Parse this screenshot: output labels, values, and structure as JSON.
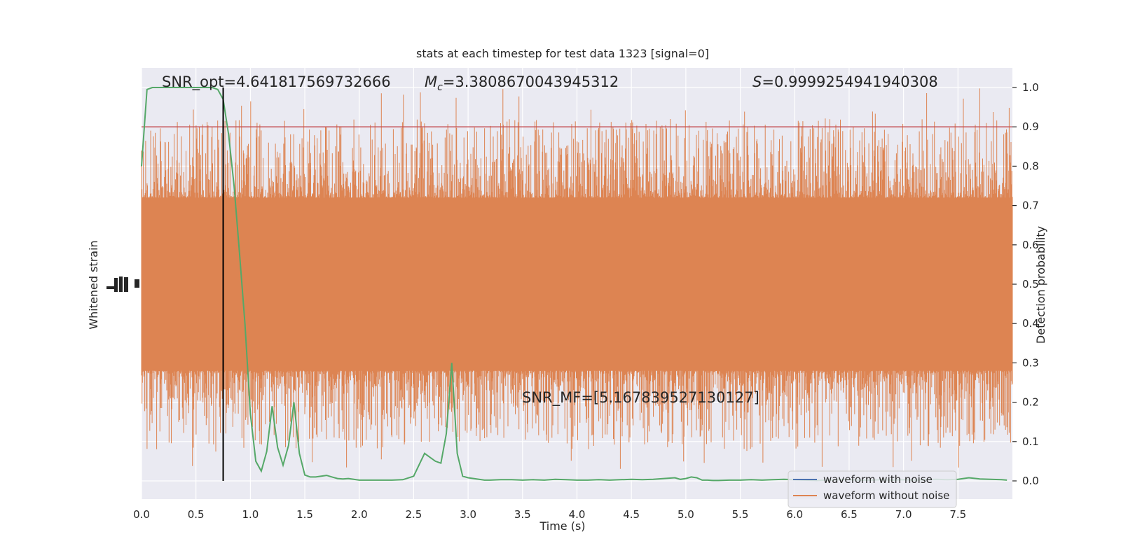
{
  "chart_data": {
    "type": "line",
    "title": "stats at each timestep for test data 1323 [signal=0]",
    "xlabel": "Time (s)",
    "ylabel_left": "Whitened strain",
    "ylabel_right": "Detection probability",
    "xlim": [
      0,
      8
    ],
    "ylim_right": [
      -0.05,
      1.05
    ],
    "x_ticks": [
      "0.0",
      "0.5",
      "1.0",
      "1.5",
      "2.0",
      "2.5",
      "3.0",
      "3.5",
      "4.0",
      "4.5",
      "5.0",
      "5.5",
      "6.0",
      "6.5",
      "7.0",
      "7.5"
    ],
    "y_ticks_right": [
      "0.0",
      "0.1",
      "0.2",
      "0.3",
      "0.4",
      "0.5",
      "0.6",
      "0.7",
      "0.8",
      "0.9",
      "1.0"
    ],
    "grid": true,
    "annotations": {
      "snr_opt": "SNR_opt=4.641817569732666",
      "mc_symbol": "M",
      "mc_sub": "c",
      "mc_value": "=3.3808670043945312",
      "s_symbol": "S",
      "s_value": "=0.9999254941940308",
      "snr_mf": "SNR_MF=[5.167839527130127]"
    },
    "threshold": 0.9,
    "marker_time": 0.75,
    "legend": {
      "placement": "lower-right",
      "entries": [
        "waveform with noise",
        "waveform without noise"
      ]
    },
    "colors": {
      "background": "#eaeaf2",
      "grid": "#ffffff",
      "noise_waveform": "#4c72b0",
      "clean_waveform": "#dd8452",
      "probability": "#55a868",
      "threshold": "#c44e52",
      "marker": "#000000"
    },
    "series": [
      {
        "name": "probability",
        "x": [
          0.0,
          0.05,
          0.1,
          0.15,
          0.2,
          0.25,
          0.3,
          0.35,
          0.4,
          0.45,
          0.5,
          0.55,
          0.6,
          0.65,
          0.7,
          0.75,
          0.8,
          0.85,
          0.9,
          0.95,
          1.0,
          1.05,
          1.1,
          1.15,
          1.2,
          1.25,
          1.3,
          1.35,
          1.4,
          1.45,
          1.5,
          1.55,
          1.6,
          1.65,
          1.7,
          1.75,
          1.8,
          1.85,
          1.9,
          1.95,
          2.0,
          2.05,
          2.1,
          2.2,
          2.3,
          2.4,
          2.5,
          2.6,
          2.65,
          2.7,
          2.75,
          2.8,
          2.85,
          2.9,
          2.95,
          3.0,
          3.05,
          3.1,
          3.15,
          3.2,
          3.3,
          3.4,
          3.5,
          3.6,
          3.7,
          3.8,
          3.9,
          4.0,
          4.1,
          4.2,
          4.3,
          4.4,
          4.5,
          4.6,
          4.7,
          4.8,
          4.9,
          4.95,
          5.0,
          5.05,
          5.1,
          5.15,
          5.2,
          5.25,
          5.3,
          5.4,
          5.5,
          5.6,
          5.7,
          5.8,
          5.9,
          6.0,
          6.1,
          6.2,
          6.3,
          6.4,
          6.5,
          6.6,
          6.7,
          6.8,
          6.9,
          7.0,
          7.1,
          7.2,
          7.3,
          7.4,
          7.5,
          7.6,
          7.7,
          7.8,
          7.9,
          7.95
        ],
        "y": [
          0.8,
          0.995,
          1.0,
          1.0,
          1.0,
          1.0,
          1.0,
          1.0,
          1.0,
          1.0,
          1.0,
          1.0,
          1.0,
          1.0,
          0.995,
          0.97,
          0.88,
          0.75,
          0.58,
          0.4,
          0.17,
          0.05,
          0.025,
          0.075,
          0.19,
          0.085,
          0.04,
          0.09,
          0.2,
          0.07,
          0.015,
          0.01,
          0.01,
          0.012,
          0.014,
          0.01,
          0.006,
          0.005,
          0.006,
          0.004,
          0.002,
          0.002,
          0.002,
          0.002,
          0.002,
          0.003,
          0.012,
          0.07,
          0.06,
          0.05,
          0.045,
          0.12,
          0.3,
          0.07,
          0.012,
          0.008,
          0.006,
          0.004,
          0.002,
          0.002,
          0.003,
          0.003,
          0.002,
          0.003,
          0.002,
          0.004,
          0.003,
          0.002,
          0.002,
          0.003,
          0.002,
          0.003,
          0.004,
          0.003,
          0.004,
          0.006,
          0.008,
          0.004,
          0.006,
          0.01,
          0.008,
          0.002,
          0.002,
          0.001,
          0.001,
          0.002,
          0.002,
          0.003,
          0.002,
          0.003,
          0.004,
          0.003,
          0.002,
          0.001,
          0.002,
          0.003,
          0.003,
          0.002,
          0.002,
          0.003,
          0.002,
          0.003,
          0.002,
          0.003,
          0.004,
          0.003,
          0.004,
          0.008,
          0.005,
          0.004,
          0.003,
          0.002
        ]
      }
    ]
  }
}
